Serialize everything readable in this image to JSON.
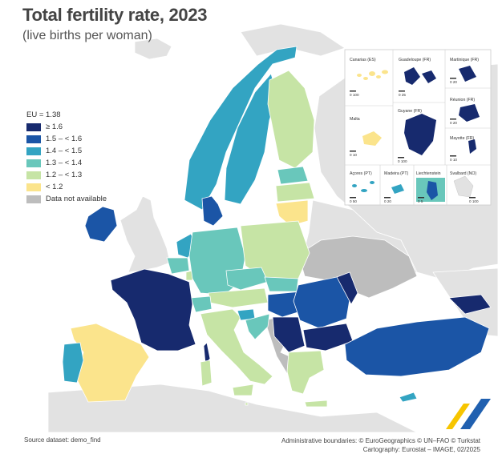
{
  "title": "Total fertility rate, 2023",
  "subtitle": "(live births per woman)",
  "colors": {
    "ge16": "#172a6e",
    "b15_16": "#1b55a6",
    "b14_15": "#33a4c2",
    "b13_14": "#69c7bb",
    "b12_13": "#c6e4a5",
    "lt12": "#fbe48c",
    "na": "#bdbdbd",
    "nonEU": "#e2e2e2",
    "sea": "#ffffff"
  },
  "legend": {
    "header": "EU = 1.38",
    "items": [
      {
        "label": "≥ 1.6",
        "color": "#172a6e"
      },
      {
        "label": "1.5 – < 1.6",
        "color": "#1b55a6"
      },
      {
        "label": "1.4 – < 1.5",
        "color": "#33a4c2"
      },
      {
        "label": "1.3 – < 1.4",
        "color": "#69c7bb"
      },
      {
        "label": "1.2 – < 1.3",
        "color": "#c6e4a5"
      },
      {
        "label": "< 1.2",
        "color": "#fbe48c"
      },
      {
        "label": "Data not available",
        "color": "#bdbdbd"
      }
    ]
  },
  "insets": {
    "canarias": {
      "label": "Canarias (ES)",
      "scale": "0  100"
    },
    "guadeloupe": {
      "label": "Guadeloupe (FR)",
      "scale": "0  25"
    },
    "martinique": {
      "label": "Martinique (FR)",
      "scale": "0  20"
    },
    "reunion": {
      "label": "Réunion (FR)",
      "scale": "0  20"
    },
    "malta": {
      "label": "Malta",
      "scale": "0  10"
    },
    "guyane": {
      "label": "Guyane (FR)",
      "scale": "0  100"
    },
    "mayotte": {
      "label": "Mayotte (FR)",
      "scale": "0  10"
    },
    "acores": {
      "label": "Açores (PT)",
      "scale": "0  50"
    },
    "madeira": {
      "label": "Madeira (PT)",
      "scale": "0  20"
    },
    "liechtenstein": {
      "label": "Liechtenstein",
      "scale": "0  5"
    },
    "svalbard": {
      "label": "Svalbard (NO)",
      "scale": "0  100"
    }
  },
  "footer": {
    "source": "Source dataset: demo_find",
    "boundaries": "Administrative boundaries: © EuroGeographics © UN–FAO © Turkstat",
    "cartography": "Cartography: Eurostat – IMAGE, 02/2025"
  }
}
